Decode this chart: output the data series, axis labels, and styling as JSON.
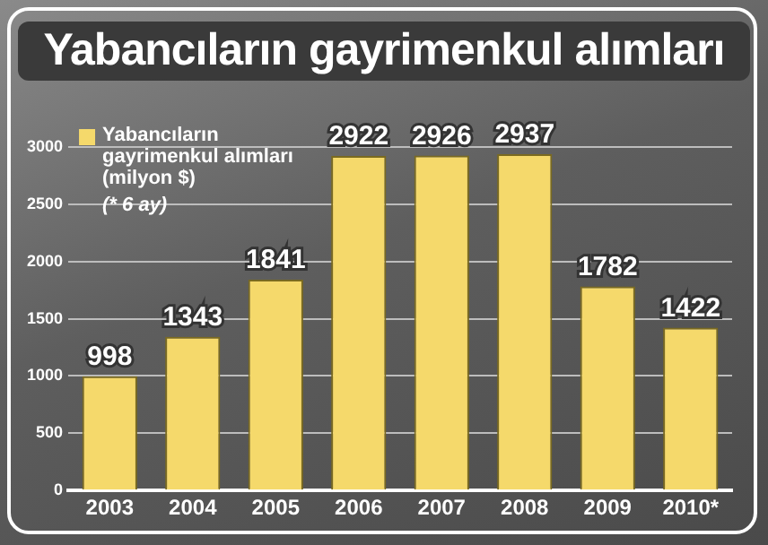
{
  "chart_data": {
    "type": "bar",
    "title": "Yabancıların gayrimenkul alımları",
    "categories": [
      "2003",
      "2004",
      "2005",
      "2006",
      "2007",
      "2008",
      "2009",
      "2010*"
    ],
    "series": [
      {
        "name": "Yabancıların gayrimenkul alımları (milyon $)",
        "color": "#f5d96b",
        "values": [
          998,
          1343,
          1841,
          2922,
          2926,
          2937,
          1782,
          1422
        ]
      }
    ],
    "ylim": [
      0,
      3000
    ],
    "yticks": [
      0,
      500,
      1000,
      1500,
      2000,
      2500,
      3000
    ],
    "grid": "y",
    "legend": "top left",
    "data_labels": true,
    "annotations": [
      "(* 6 ay)"
    ]
  }
}
